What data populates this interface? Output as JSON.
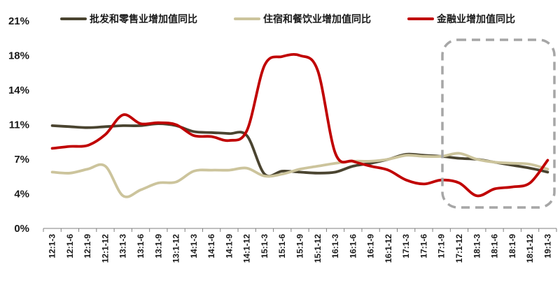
{
  "chart_data": {
    "type": "line",
    "x": [
      "12:1-3",
      "12:1-6",
      "12:1-9",
      "12:1-12",
      "13:1-3",
      "13:1-6",
      "13:1-9",
      "13:1-12",
      "14:1-3",
      "14:1-6",
      "14:1-9",
      "14:1-12",
      "15:1-3",
      "15:1-6",
      "15:1-9",
      "15:1-12",
      "16:1-3",
      "16:1-6",
      "16:1-9",
      "16:1-12",
      "17:1-3",
      "17:1-6",
      "17:1-9",
      "17:1-12",
      "18:1-3",
      "18:1-6",
      "18:1-9",
      "18:1-12",
      "19:1-3"
    ],
    "y_ticks": [
      "0%",
      "4%",
      "7%",
      "11%",
      "14%",
      "18%",
      "21%"
    ],
    "ylim": [
      0,
      21
    ],
    "series": [
      {
        "name": "批发和零售业增加值同比",
        "color": "#4a4430",
        "values": [
          10.4,
          10.3,
          10.2,
          10.3,
          10.4,
          10.4,
          10.6,
          10.4,
          9.8,
          9.7,
          9.6,
          9.4,
          5.5,
          5.8,
          5.7,
          5.6,
          5.7,
          6.3,
          6.6,
          7.0,
          7.5,
          7.4,
          7.3,
          7.1,
          7.0,
          6.7,
          6.4,
          6.1,
          5.7
        ]
      },
      {
        "name": "住宿和餐饮业增加值同比",
        "color": "#ccc49c",
        "values": [
          5.7,
          5.6,
          6.0,
          6.3,
          3.3,
          3.9,
          4.6,
          4.7,
          5.8,
          5.9,
          5.9,
          6.1,
          5.3,
          5.5,
          6.0,
          6.3,
          6.6,
          6.8,
          6.8,
          7.0,
          7.4,
          7.3,
          7.3,
          7.6,
          7.0,
          6.7,
          6.6,
          6.5,
          6.0
        ]
      },
      {
        "name": "金融业增加值同比",
        "color": "#c00000",
        "values": [
          8.1,
          8.3,
          8.4,
          9.5,
          11.5,
          10.6,
          10.7,
          10.5,
          9.4,
          9.3,
          8.9,
          9.9,
          16.5,
          17.4,
          17.5,
          16.0,
          7.6,
          6.8,
          6.3,
          5.9,
          4.9,
          4.5,
          4.9,
          4.6,
          3.3,
          4.0,
          4.2,
          4.6,
          6.9
        ]
      }
    ]
  }
}
